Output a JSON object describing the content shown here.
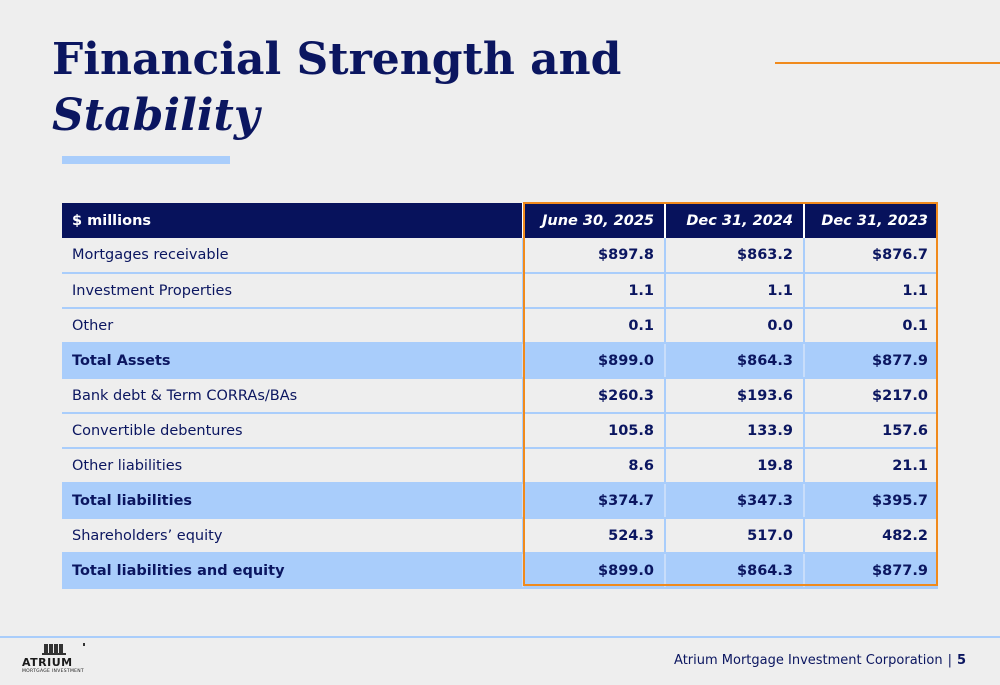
{
  "title": {
    "line1": "Financial Strength and",
    "line2": "Stability"
  },
  "table": {
    "headers": [
      "$ millions",
      "June 30, 2025",
      "Dec 31, 2024",
      "Dec 31, 2023"
    ],
    "rows": [
      {
        "label": "Mortgages receivable",
        "values": [
          "$897.8",
          "$863.2",
          "$876.7"
        ],
        "total": false
      },
      {
        "label": "Investment Properties",
        "values": [
          "1.1",
          "1.1",
          "1.1"
        ],
        "total": false
      },
      {
        "label": "Other",
        "values": [
          "0.1",
          "0.0",
          "0.1"
        ],
        "total": false
      },
      {
        "label": "Total Assets",
        "values": [
          "$899.0",
          "$864.3",
          "$877.9"
        ],
        "total": true
      },
      {
        "label": "Bank debt & Term CORRAs/BAs",
        "values": [
          "$260.3",
          "$193.6",
          "$217.0"
        ],
        "total": false
      },
      {
        "label": "Convertible debentures",
        "values": [
          "105.8",
          "133.9",
          "157.6"
        ],
        "total": false
      },
      {
        "label": "Other liabilities",
        "values": [
          "8.6",
          "19.8",
          "21.1"
        ],
        "total": false
      },
      {
        "label": "Total liabilities",
        "values": [
          "$374.7",
          "$347.3",
          "$395.7"
        ],
        "total": true
      },
      {
        "label": "Shareholders’ equity",
        "values": [
          "524.3",
          "517.0",
          "482.2"
        ],
        "total": false
      },
      {
        "label": "Total liabilities and equity",
        "values": [
          "$899.0",
          "$864.3",
          "$877.9"
        ],
        "total": true
      }
    ]
  },
  "footer": {
    "company": "Atrium Mortgage Investment Corporation",
    "separator": "|",
    "page": "5"
  },
  "logo": {
    "word": "ATRIUM",
    "sub": "MORTGAGE INVESTMENT"
  },
  "colors": {
    "navy": "#07125c",
    "light_blue": "#a9cdfb",
    "orange": "#f08a1c",
    "background": "#eeeeee"
  }
}
